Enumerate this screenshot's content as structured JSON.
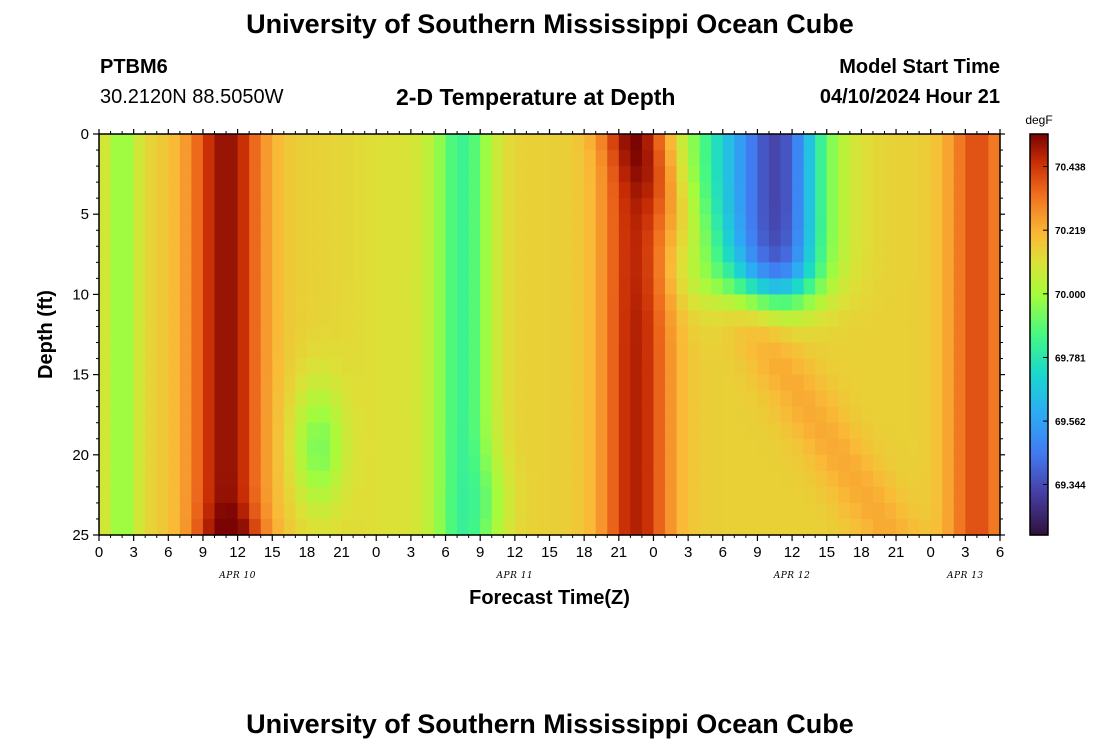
{
  "header": {
    "title": "University of Southern Mississippi Ocean Cube",
    "station_id": "PTBM6",
    "coordinates": "30.2120N  88.5050W",
    "subtitle": "2-D Temperature at Depth",
    "model_start_label": "Model Start Time",
    "model_start_value": "04/10/2024 Hour 21"
  },
  "footer": {
    "title": "University of Southern Mississippi Ocean Cube"
  },
  "chart_data": {
    "type": "heatmap",
    "title": "2-D Temperature at Depth",
    "xlabel": "Forecast Time(Z)",
    "ylabel": "Depth (ft)",
    "x_range_hours": [
      0,
      78
    ],
    "ylim": [
      0,
      25
    ],
    "y_inverted": true,
    "x_ticks": [
      "0",
      "3",
      "6",
      "9",
      "12",
      "15",
      "18",
      "21",
      "0",
      "3",
      "6",
      "9",
      "12",
      "15",
      "18",
      "21",
      "0",
      "3",
      "6",
      "9",
      "12",
      "15",
      "18",
      "21",
      "0",
      "3",
      "6"
    ],
    "y_ticks": [
      "0",
      "5",
      "10",
      "15",
      "20",
      "25"
    ],
    "date_labels": [
      {
        "label": "APR 10",
        "hour": 12
      },
      {
        "label": "APR 11",
        "hour": 36
      },
      {
        "label": "APR 12",
        "hour": 60
      },
      {
        "label": "APR 13",
        "hour": 75
      }
    ],
    "colorbar": {
      "unit": "degF",
      "min": 69.17,
      "max": 70.55,
      "labels": [
        "70.438",
        "70.219",
        "70.000",
        "69.781",
        "69.562",
        "69.344"
      ]
    }
  }
}
